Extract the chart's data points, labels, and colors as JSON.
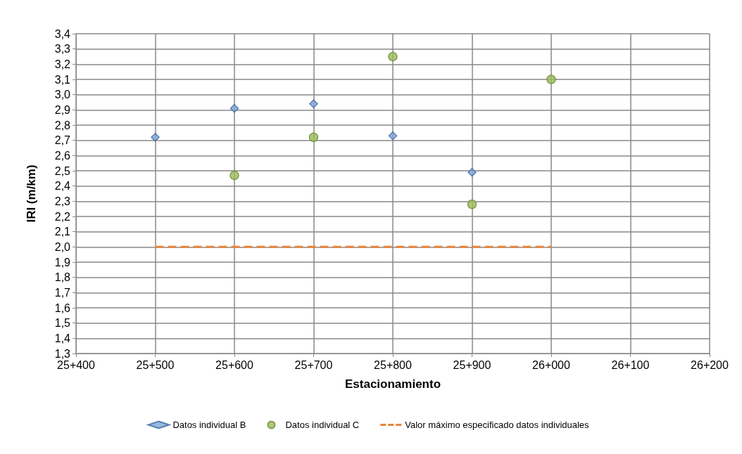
{
  "chart_data": {
    "type": "scatter",
    "xlabel": "Estacionamiento",
    "ylabel": "IRI (m/km)",
    "categories": [
      "25+400",
      "25+500",
      "25+600",
      "25+700",
      "25+800",
      "25+900",
      "26+000",
      "26+100",
      "26+200"
    ],
    "ylim": [
      1.3,
      3.4
    ],
    "yticks": [
      {
        "value": 1.3,
        "label": "1,3"
      },
      {
        "value": 1.4,
        "label": "1,4"
      },
      {
        "value": 1.5,
        "label": "1,5"
      },
      {
        "value": 1.6,
        "label": "1,6"
      },
      {
        "value": 1.7,
        "label": "1,7"
      },
      {
        "value": 1.8,
        "label": "1,8"
      },
      {
        "value": 1.9,
        "label": "1,9"
      },
      {
        "value": 2.0,
        "label": "2,0"
      },
      {
        "value": 2.1,
        "label": "2,1"
      },
      {
        "value": 2.2,
        "label": "2,2"
      },
      {
        "value": 2.3,
        "label": "2,3"
      },
      {
        "value": 2.4,
        "label": "2,4"
      },
      {
        "value": 2.5,
        "label": "2,5"
      },
      {
        "value": 2.6,
        "label": "2,6"
      },
      {
        "value": 2.7,
        "label": "2,7"
      },
      {
        "value": 2.8,
        "label": "2,8"
      },
      {
        "value": 2.9,
        "label": "2,9"
      },
      {
        "value": 3.0,
        "label": "3,0"
      },
      {
        "value": 3.1,
        "label": "3,1"
      },
      {
        "value": 3.2,
        "label": "3,2"
      },
      {
        "value": 3.3,
        "label": "3,3"
      },
      {
        "value": 3.4,
        "label": "3,4"
      }
    ],
    "grid": true,
    "legend": "bottom",
    "series": [
      {
        "name": "Datos individual B",
        "marker": "diamond",
        "color": "#7ea6d8",
        "values": [
          null,
          2.72,
          2.91,
          2.94,
          2.73,
          2.49,
          null,
          null,
          null
        ]
      },
      {
        "name": "Datos individual C",
        "marker": "circle",
        "color": "#9bbb59",
        "values": [
          null,
          null,
          2.47,
          2.72,
          3.25,
          2.28,
          3.1,
          null,
          null
        ]
      },
      {
        "name": "Valor máximo especificado datos individuales",
        "type": "line",
        "marker": "none",
        "line_style": "dashed",
        "color": "#e8853a",
        "values": [
          null,
          2.0,
          2.0,
          2.0,
          2.0,
          2.0,
          2.0,
          null,
          null
        ]
      }
    ]
  }
}
